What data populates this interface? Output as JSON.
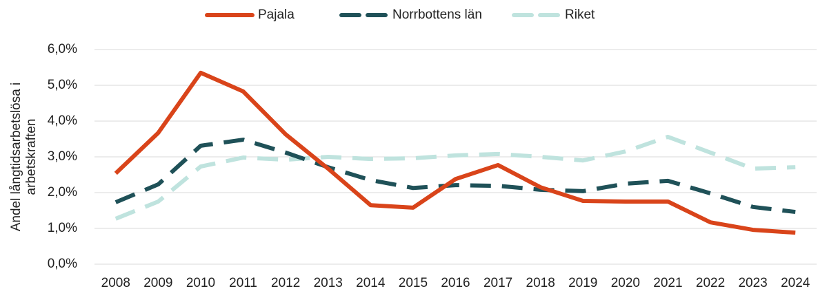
{
  "chart_data": {
    "type": "line",
    "ylabel": [
      "Andel långtidsarbetslösa i",
      "arbetskraften"
    ],
    "categories": [
      "2008",
      "2009",
      "2010",
      "2011",
      "2012",
      "2013",
      "2014",
      "2015",
      "2016",
      "2017",
      "2018",
      "2019",
      "2020",
      "2021",
      "2022",
      "2023",
      "2024"
    ],
    "series": [
      {
        "name": "Pajala",
        "color": "#d9441a",
        "line_style": "solid",
        "values": [
          2.54,
          3.67,
          5.35,
          4.83,
          3.63,
          2.67,
          1.65,
          1.58,
          2.38,
          2.77,
          2.15,
          1.77,
          1.75,
          1.75,
          1.17,
          0.96,
          0.88
        ]
      },
      {
        "name": "Norrbottens län",
        "color": "#1f5158",
        "line_style": "dashed",
        "values": [
          1.73,
          2.23,
          3.31,
          3.48,
          3.12,
          2.71,
          2.35,
          2.13,
          2.21,
          2.19,
          2.08,
          2.04,
          2.25,
          2.33,
          1.98,
          1.6,
          1.46
        ]
      },
      {
        "name": "Riket",
        "color": "#bfe3de",
        "line_style": "dashed",
        "values": [
          1.27,
          1.75,
          2.73,
          2.98,
          2.92,
          3.0,
          2.94,
          2.96,
          3.04,
          3.08,
          3.0,
          2.9,
          3.15,
          3.56,
          3.12,
          2.67,
          2.71
        ]
      }
    ],
    "ylim": [
      0,
      6
    ],
    "yticks": [
      {
        "value": 0,
        "label": "0,0%"
      },
      {
        "value": 1,
        "label": "1,0%"
      },
      {
        "value": 2,
        "label": "2,0%"
      },
      {
        "value": 3,
        "label": "3,0%"
      },
      {
        "value": 4,
        "label": "4,0%"
      },
      {
        "value": 5,
        "label": "5,0%"
      },
      {
        "value": 6,
        "label": "6,0%"
      }
    ],
    "grid": true,
    "legend": "top"
  }
}
